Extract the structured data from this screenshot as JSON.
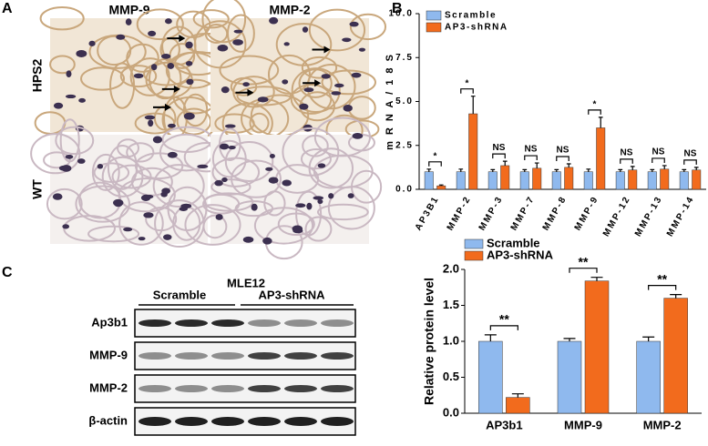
{
  "panel_labels": [
    "A",
    "B",
    "C"
  ],
  "histology": {
    "columns": [
      "MMP-9",
      "MMP-2"
    ],
    "rows": [
      "HPS2",
      "WT"
    ]
  },
  "blot": {
    "title": "MLE12",
    "groups": [
      "Scramble",
      "AP3-shRNA"
    ],
    "rows": [
      "Ap3b1",
      "MMP-9",
      "MMP-2",
      "β-actin"
    ]
  },
  "chart_data": [
    {
      "type": "bar",
      "ylabel": "m R N A / 1 8 S",
      "categories": [
        "AP3B1",
        "MMP-2",
        "MMP-3",
        "MMP-7",
        "MMP-8",
        "MMP-9",
        "MMP-12",
        "MMP-13",
        "MMP-14"
      ],
      "series": [
        {
          "name": "Scramble",
          "color": "#8fb9ee",
          "values": [
            1,
            1,
            1,
            1,
            1,
            1,
            1,
            1,
            1
          ],
          "errors": [
            0.15,
            0.15,
            0.12,
            0.12,
            0.12,
            0.15,
            0.12,
            0.12,
            0.12
          ]
        },
        {
          "name": "AP3-shRNA",
          "color": "#f26b1d",
          "values": [
            0.2,
            4.3,
            1.35,
            1.2,
            1.25,
            3.5,
            1.1,
            1.15,
            1.1
          ],
          "errors": [
            0.05,
            1.0,
            0.25,
            0.3,
            0.2,
            0.6,
            0.2,
            0.2,
            0.15
          ]
        }
      ],
      "significance": [
        "*",
        "*",
        "NS",
        "NS",
        "NS",
        "*",
        "NS",
        "NS",
        "NS"
      ],
      "ylim": [
        0,
        10
      ],
      "yticks": [
        {
          "value": 0,
          "label": "0.0"
        },
        2.5,
        {
          "value": 5,
          "label": "5.0"
        },
        7.5,
        {
          "value": 10,
          "label": "10.0"
        }
      ],
      "legend": "upper left"
    },
    {
      "type": "bar",
      "ylabel": "Relative protein level",
      "categories": [
        "AP3b1",
        "MMP-9",
        "MMP-2"
      ],
      "series": [
        {
          "name": "Scramble",
          "color": "#8fb9ee",
          "values": [
            1,
            1,
            1
          ],
          "errors": [
            0.09,
            0.04,
            0.06
          ]
        },
        {
          "name": "AP3-shRNA",
          "color": "#f26b1d",
          "values": [
            0.22,
            1.84,
            1.6
          ],
          "errors": [
            0.05,
            0.05,
            0.05
          ]
        }
      ],
      "significance": [
        "**",
        "**",
        "**"
      ],
      "ylim": [
        0,
        2
      ],
      "yticks": [
        {
          "value": 0,
          "label": "0.0"
        },
        0.5,
        {
          "value": 1,
          "label": "1.0"
        },
        1.5,
        {
          "value": 2,
          "label": "2.0"
        }
      ],
      "legend": "upper left"
    }
  ]
}
